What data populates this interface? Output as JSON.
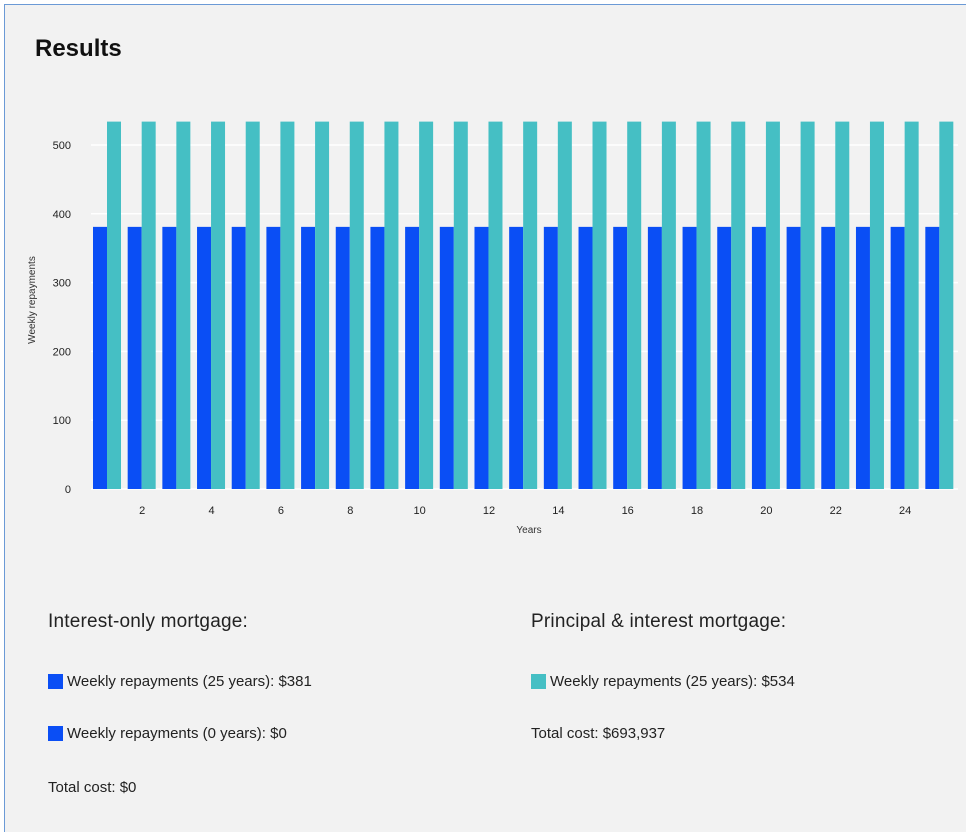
{
  "page": {
    "title": "Results"
  },
  "colors": {
    "interest_only": "#0a4ef5",
    "principal_interest": "#45bfc4",
    "panel_bg": "#f2f2f2"
  },
  "chart_data": {
    "type": "bar",
    "xlabel": "Years",
    "ylabel": "Weekly repayments",
    "ylim": [
      0,
      560
    ],
    "yticks": [
      0,
      100,
      200,
      300,
      400,
      500
    ],
    "xticks": [
      2,
      4,
      6,
      8,
      10,
      12,
      14,
      16,
      18,
      20,
      22,
      24
    ],
    "categories": [
      1,
      2,
      3,
      4,
      5,
      6,
      7,
      8,
      9,
      10,
      11,
      12,
      13,
      14,
      15,
      16,
      17,
      18,
      19,
      20,
      21,
      22,
      23,
      24,
      25
    ],
    "series": [
      {
        "name": "Interest-only mortgage",
        "color": "#0a4ef5",
        "values": [
          381,
          381,
          381,
          381,
          381,
          381,
          381,
          381,
          381,
          381,
          381,
          381,
          381,
          381,
          381,
          381,
          381,
          381,
          381,
          381,
          381,
          381,
          381,
          381,
          381
        ]
      },
      {
        "name": "Principal & interest mortgage",
        "color": "#45bfc4",
        "values": [
          534,
          534,
          534,
          534,
          534,
          534,
          534,
          534,
          534,
          534,
          534,
          534,
          534,
          534,
          534,
          534,
          534,
          534,
          534,
          534,
          534,
          534,
          534,
          534,
          534
        ]
      }
    ],
    "grid": true
  },
  "summary": {
    "interest_only": {
      "heading": "Interest-only mortgage:",
      "rows": [
        {
          "label": "Weekly repayments (25 years): $381"
        },
        {
          "label": "Weekly repayments (0 years): $0"
        }
      ],
      "total": "Total cost: $0"
    },
    "principal_interest": {
      "heading": "Principal & interest mortgage:",
      "rows": [
        {
          "label": "Weekly repayments (25 years): $534"
        }
      ],
      "total": "Total cost: $693,937"
    }
  }
}
